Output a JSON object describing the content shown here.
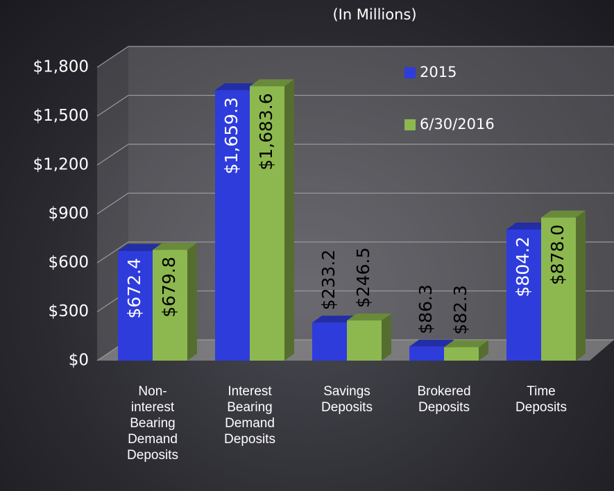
{
  "chart_data": {
    "type": "bar3d",
    "title": "(In Millions)",
    "categories": [
      "Non-interest Bearing Demand Deposits",
      "Interest Bearing Demand Deposits",
      "Savings Deposits",
      "Brokered Deposits",
      "Time Deposits"
    ],
    "series": [
      {
        "name": "2015",
        "color": "#2e3cdc",
        "values": [
          672.4,
          1659.3,
          233.2,
          86.3,
          804.2
        ],
        "value_labels": [
          "$672.4",
          "$1,659.3",
          "$233.2",
          "$86.3",
          "$804.2"
        ]
      },
      {
        "name": "6/30/2016",
        "color": "#8db84f",
        "values": [
          679.8,
          1683.6,
          246.5,
          82.3,
          878.0
        ],
        "value_labels": [
          "$679.8",
          "$1,683.6",
          "$246.5",
          "$82.3",
          "$878.0"
        ]
      }
    ],
    "ylim": [
      0,
      1800
    ],
    "yticks": [
      {
        "value": 0,
        "label": "$0"
      },
      {
        "value": 300,
        "label": "$300"
      },
      {
        "value": 600,
        "label": "$600"
      },
      {
        "value": 900,
        "label": "$900"
      },
      {
        "value": 1200,
        "label": "$1,200"
      },
      {
        "value": 1500,
        "label": "$1,500"
      },
      {
        "value": 1800,
        "label": "$1,800"
      }
    ],
    "grid": true,
    "legend": "top-right"
  }
}
